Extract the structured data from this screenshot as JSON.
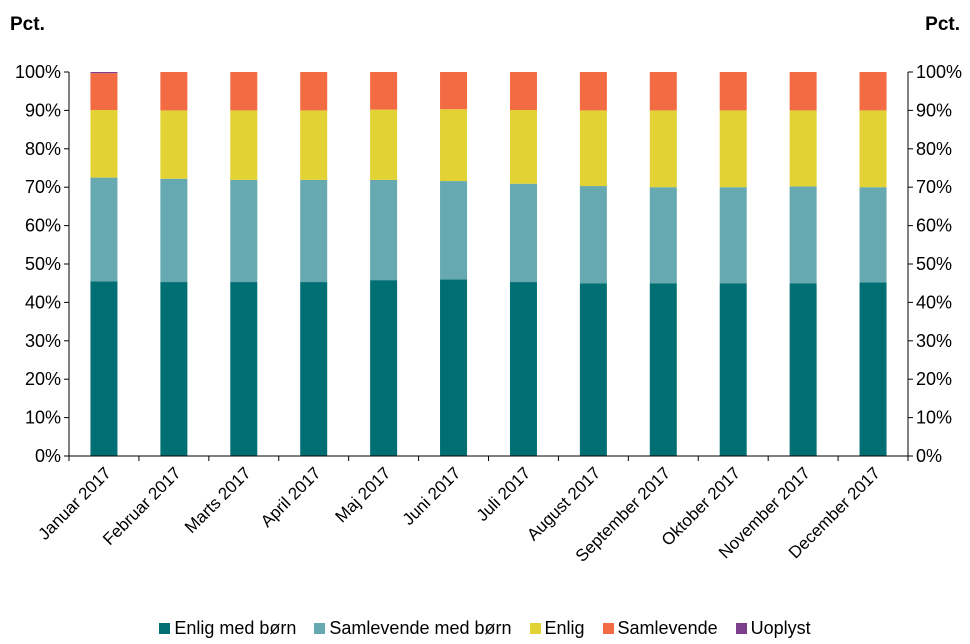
{
  "chart_data": {
    "type": "bar",
    "stacked": true,
    "percent": true,
    "unit_left": "Pct.",
    "unit_right": "Pct.",
    "categories": [
      "Januar 2017",
      "Februar 2017",
      "Marts 2017",
      "April 2017",
      "Maj 2017",
      "Juni 2017",
      "Juli 2017",
      "August 2017",
      "September 2017",
      "Oktober 2017",
      "November 2017",
      "December 2017"
    ],
    "yticks": [
      "0%",
      "10%",
      "20%",
      "30%",
      "40%",
      "50%",
      "60%",
      "70%",
      "80%",
      "90%",
      "100%"
    ],
    "ylim": [
      0,
      100
    ],
    "legend_position": "bottom",
    "grid": false,
    "series": [
      {
        "name": "Enlig med børn",
        "color": "#006F73",
        "values": [
          45.5,
          45.3,
          45.3,
          45.3,
          45.8,
          46.0,
          45.3,
          45.0,
          45.0,
          45.0,
          45.0,
          45.2
        ]
      },
      {
        "name": "Samlevende med børn",
        "color": "#66A9B0",
        "values": [
          27.0,
          26.9,
          26.6,
          26.6,
          26.1,
          25.6,
          25.6,
          25.3,
          25.0,
          25.0,
          25.2,
          24.8
        ]
      },
      {
        "name": "Enlig",
        "color": "#E2D233",
        "values": [
          17.6,
          17.8,
          18.1,
          18.1,
          18.3,
          18.7,
          19.2,
          19.7,
          20.0,
          20.0,
          19.8,
          20.0
        ]
      },
      {
        "name": "Samlevende",
        "color": "#F26B43",
        "values": [
          9.6,
          10.0,
          10.0,
          10.0,
          9.8,
          9.7,
          9.9,
          10.0,
          10.0,
          10.0,
          10.0,
          10.0
        ]
      },
      {
        "name": "Uoplyst",
        "color": "#7B3F8C",
        "values": [
          0.3,
          0.0,
          0.0,
          0.0,
          0.0,
          0.0,
          0.0,
          0.0,
          0.0,
          0.0,
          0.0,
          0.0
        ]
      }
    ]
  }
}
